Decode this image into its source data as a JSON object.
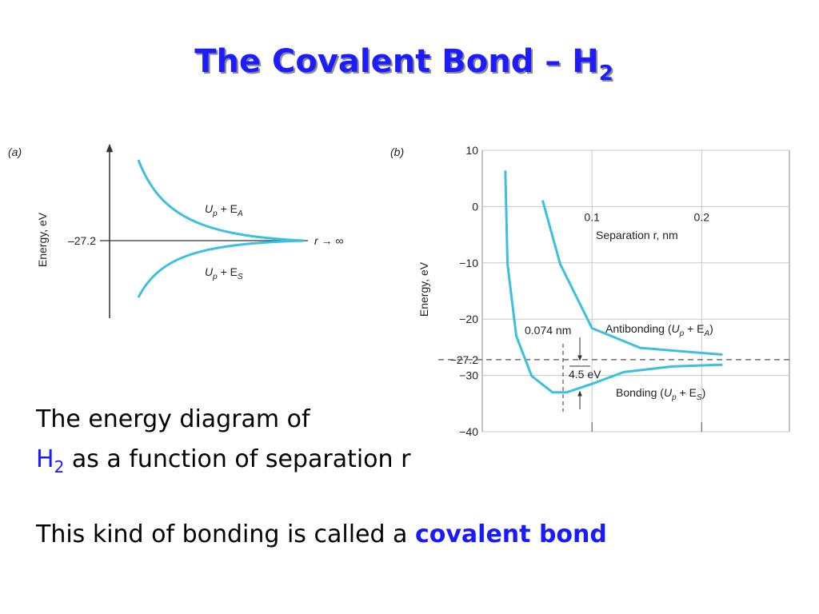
{
  "title": {
    "main": "The Covalent Bond – H",
    "sub": "2"
  },
  "figure_a": {
    "label": "(a)",
    "y_axis_label": "Energy, eV",
    "level_label": "–27.2",
    "r_label": [
      "r",
      " → ∞"
    ],
    "upper_curve": [
      "U",
      "p",
      " + E",
      "A"
    ],
    "lower_curve": [
      "U",
      "p",
      " + E",
      "S"
    ]
  },
  "chart_data": {
    "type": "line",
    "panel_label": "(b)",
    "x_label": "Separation r, nm",
    "y_label": "Energy, eV",
    "xlim": [
      0,
      0.28
    ],
    "ylim": [
      -40,
      10
    ],
    "xticks": [
      0.1,
      0.2
    ],
    "yticks": [
      10,
      0,
      {
        "value": -10,
        "label": "−10"
      },
      {
        "value": -20,
        "label": "−20"
      },
      {
        "value": -27.2,
        "label": "−27.2"
      },
      {
        "value": -30,
        "label": "−30"
      },
      {
        "value": -40,
        "label": "−40"
      }
    ],
    "grid": true,
    "reference_line": -27.2,
    "series": [
      {
        "label": [
          "Antibonding (",
          "U",
          "p",
          " + E",
          "A",
          ")"
        ],
        "color": "#3cbfe0",
        "x": [
          0.055,
          0.071,
          0.1,
          0.144,
          0.219
        ],
        "values": [
          1.1,
          -10.2,
          -21.6,
          -25.1,
          -26.3
        ]
      },
      {
        "label": [
          "Bonding (",
          "U",
          "p",
          " + E",
          "S",
          ")"
        ],
        "color": "#3cbfe0",
        "x": [
          0.021,
          0.023,
          0.031,
          0.045,
          0.064,
          0.077,
          0.1,
          0.129,
          0.173,
          0.219
        ],
        "values": [
          6.4,
          -10.2,
          -23,
          -30.1,
          -33,
          -33,
          -31.5,
          -29.4,
          -28.4,
          -28.1
        ]
      }
    ],
    "annotations": {
      "separation": "0.074 nm",
      "depth": "4.5 eV"
    }
  },
  "body": {
    "line1": "The energy diagram of",
    "line2_h": "H",
    "line2_sub": "2",
    "line2_rest": " as a function of separation r",
    "line3": "This kind of bonding is called a ",
    "line3_em": "covalent bond"
  }
}
